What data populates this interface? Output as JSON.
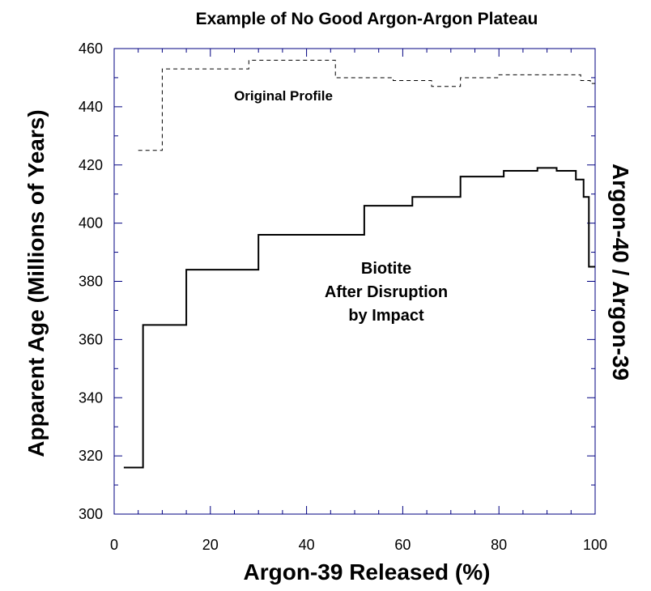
{
  "chart_data": {
    "type": "step",
    "title": "Example of No Good Argon-Argon Plateau",
    "x_label": "Argon-39 Released (%)",
    "y_label": "Apparent Age (Millions of Years)",
    "y2_label": "Argon-40 / Argon-39",
    "annotations": [
      "Original Profile",
      "Biotite",
      "After Disruption",
      "by Impact"
    ],
    "xlim": [
      0,
      100
    ],
    "xticks": [
      0,
      20,
      40,
      60,
      80,
      100
    ],
    "xminorticks": [
      5,
      10,
      15,
      25,
      30,
      35,
      45,
      50,
      55,
      65,
      70,
      75,
      85,
      90,
      95
    ],
    "ylim": [
      300,
      460
    ],
    "yticks": [
      300,
      320,
      340,
      360,
      380,
      400,
      420,
      440,
      460
    ],
    "yminorticks": [
      310,
      330,
      350,
      370,
      390,
      410,
      430,
      450
    ],
    "axis_color": "#000080",
    "series": [
      {
        "name": "Biotite After Disruption by Impact",
        "color": "#000000",
        "dash": "solid",
        "x": [
          2,
          6,
          15,
          30,
          52,
          62,
          72,
          81,
          88,
          92,
          96,
          97.6,
          98.7,
          100
        ],
        "values": [
          316,
          365,
          384,
          396,
          406,
          409,
          416,
          418,
          419,
          418,
          415,
          409,
          385,
          385
        ]
      },
      {
        "name": "Original Profile",
        "color": "#000000",
        "dash": "dashed",
        "x": [
          5,
          10,
          28,
          46,
          58,
          66,
          70,
          72,
          80,
          97,
          99,
          100
        ],
        "values": [
          425,
          453,
          456,
          450,
          449,
          447,
          447,
          450,
          451,
          449,
          448,
          448
        ]
      }
    ]
  }
}
